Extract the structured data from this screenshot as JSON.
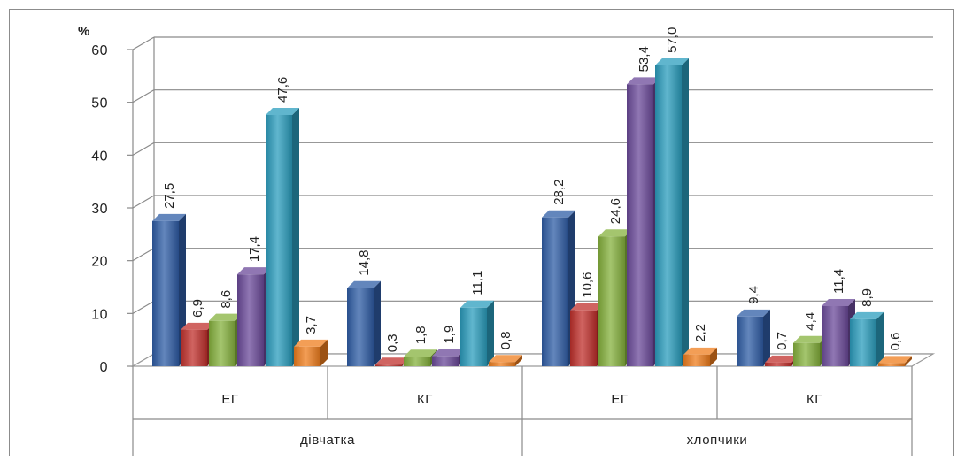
{
  "chart_data": {
    "type": "bar",
    "y_unit_label": "%",
    "ylim": [
      0,
      60
    ],
    "y_ticks": [
      "0",
      "10",
      "20",
      "30",
      "40",
      "50",
      "60"
    ],
    "grid": true,
    "groups": [
      {
        "label": "дівчатка",
        "subgroups": [
          {
            "label": "ЕГ",
            "values": [
              27.5,
              6.9,
              8.6,
              17.4,
              47.6,
              3.7
            ],
            "value_labels": [
              "27,5",
              "6,9",
              "8,6",
              "17,4",
              "47,6",
              "3,7"
            ]
          },
          {
            "label": "КГ",
            "values": [
              14.8,
              0.3,
              1.8,
              1.9,
              11.1,
              0.8
            ],
            "value_labels": [
              "14,8",
              "0,3",
              "1,8",
              "1,9",
              "11,1",
              "0,8"
            ]
          }
        ]
      },
      {
        "label": "хлопчики",
        "subgroups": [
          {
            "label": "ЕГ",
            "values": [
              28.2,
              10.6,
              24.6,
              53.4,
              57.0,
              2.2
            ],
            "value_labels": [
              "28,2",
              "10,6",
              "24,6",
              "53,4",
              "57,0",
              "2,2"
            ]
          },
          {
            "label": "КГ",
            "values": [
              9.4,
              0.7,
              4.4,
              11.4,
              8.9,
              0.6
            ],
            "value_labels": [
              "9,4",
              "0,7",
              "4,4",
              "11,4",
              "8,9",
              "0,6"
            ]
          }
        ]
      }
    ],
    "series_colors": [
      "#2f5da6",
      "#c0302c",
      "#86b23d",
      "#6b4a9a",
      "#2b9dbd",
      "#ef7d1d"
    ]
  }
}
